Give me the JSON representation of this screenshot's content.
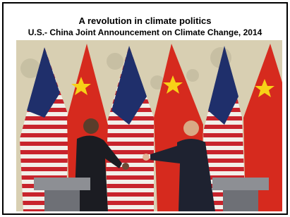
{
  "slide": {
    "title": "A revolution in climate politics",
    "subtitle": "U.S.- China Joint Announcement on Climate Change, 2014"
  }
}
